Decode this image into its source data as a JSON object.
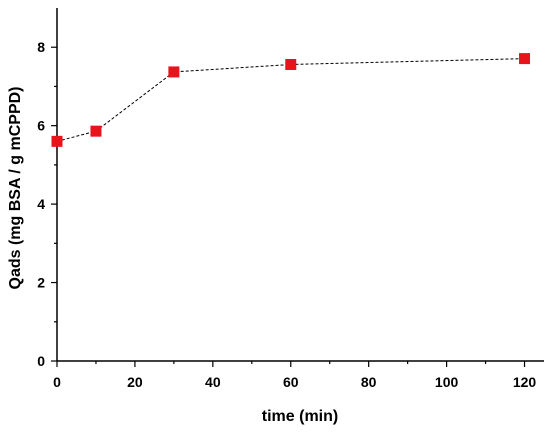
{
  "chart_data": {
    "type": "scatter",
    "title": "",
    "xlabel": "time (min)",
    "ylabel": "Qads (mg BSA / g mCPPD)",
    "xlim": [
      0,
      125
    ],
    "ylim": [
      0,
      9
    ],
    "x_ticks": [
      0,
      20,
      40,
      60,
      80,
      100,
      120
    ],
    "y_ticks": [
      0,
      2,
      4,
      6,
      8
    ],
    "grid": false,
    "legend": "none",
    "series": [
      {
        "x": [
          0,
          10,
          30,
          60,
          120
        ],
        "y": [
          5.6,
          5.86,
          7.37,
          7.56,
          7.71
        ],
        "marker": "square",
        "color": "#e8141c",
        "line_style": "dashed",
        "line_color": "#000000"
      }
    ]
  }
}
